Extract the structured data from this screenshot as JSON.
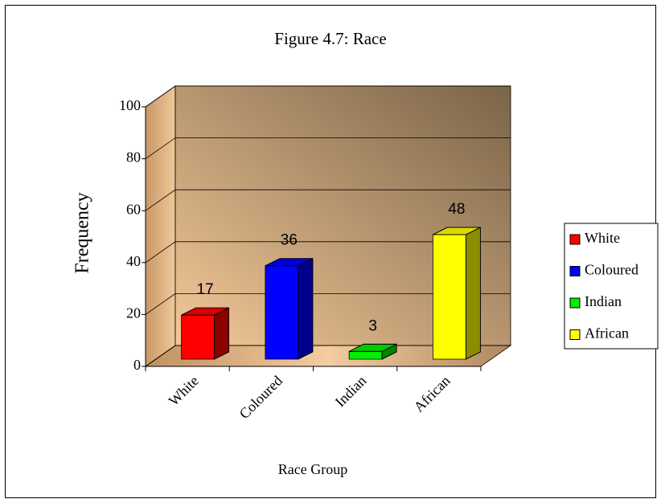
{
  "chart_data": {
    "type": "bar3d",
    "title": "Figure 4.7: Race",
    "x_label": "Race Group",
    "y_label": "Frequency",
    "categories": [
      "White",
      "Coloured",
      "Indian",
      "African"
    ],
    "values": [
      17,
      36,
      3,
      48
    ],
    "colors": [
      "#ff0000",
      "#0000ff",
      "#00ee00",
      "#ffff00"
    ],
    "ylim": [
      0,
      100
    ],
    "yticks": [
      0,
      20,
      40,
      60,
      80,
      100
    ],
    "grid": true,
    "legend": "right"
  }
}
